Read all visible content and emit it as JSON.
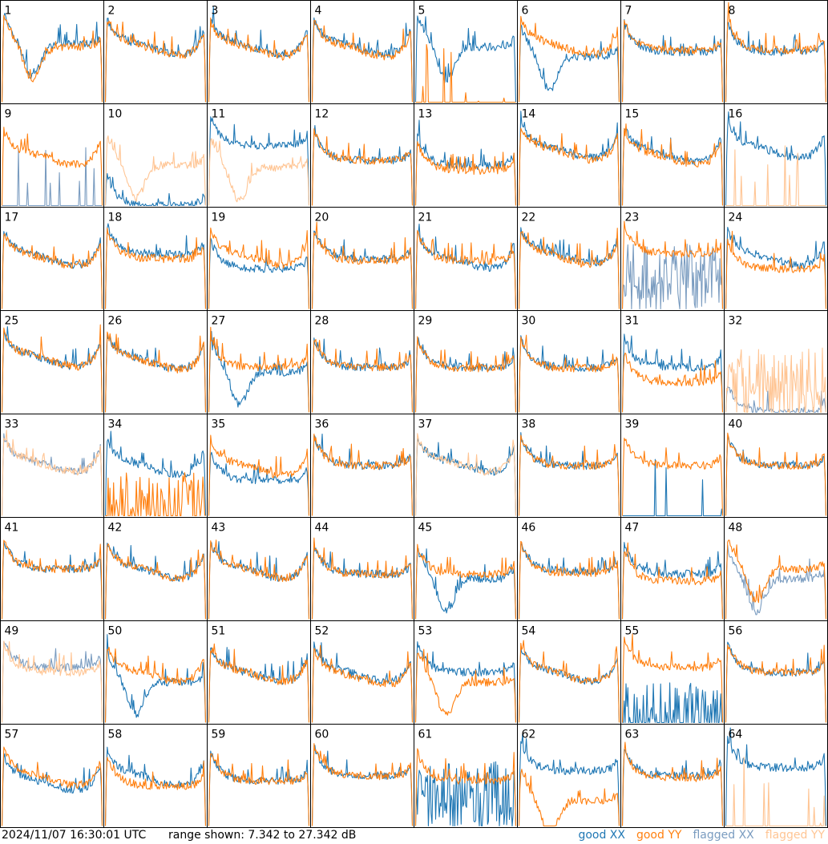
{
  "colors": {
    "good_xx": "#1f77b4",
    "good_yy": "#ff7f0e",
    "flagged_xx": "#7a9cc0",
    "flagged_yy": "#ffc594",
    "panel_border": "#000000",
    "background": "#ffffff"
  },
  "footer": {
    "timestamp": "2024/11/07 16:30:01 UTC",
    "range_text": "range shown: 7.342 to 27.342 dB"
  },
  "legend": [
    {
      "label": "good XX",
      "word": "good",
      "pol": "XX",
      "color": "#1f77b4"
    },
    {
      "label": "good YY",
      "word": "good",
      "pol": "YY",
      "color": "#ff7f0e"
    },
    {
      "label": "flagged XX",
      "word": "flagged",
      "pol": "XX",
      "color": "#7a9cc0"
    },
    {
      "label": "flagged YY",
      "word": "flagged",
      "pol": "YY",
      "color": "#ffc594"
    }
  ],
  "chart_data": {
    "type": "line",
    "layout": "small-multiples grid",
    "rows": 8,
    "cols": 8,
    "y_range_db": [
      7.342,
      27.342
    ],
    "axis_labels": "none",
    "tiles": [
      {
        "id": "1",
        "xx": {
          "status": "good",
          "level": 0.58,
          "shape": "deep_dip"
        },
        "yy": {
          "status": "good",
          "level": 0.55,
          "shape": "deep_dip"
        }
      },
      {
        "id": "2",
        "xx": {
          "status": "good",
          "level": 0.62,
          "shape": "bathtub"
        },
        "yy": {
          "status": "good",
          "level": 0.61,
          "shape": "bathtub"
        }
      },
      {
        "id": "3",
        "xx": {
          "status": "good",
          "level": 0.62,
          "shape": "bathtub"
        },
        "yy": {
          "status": "good",
          "level": 0.6,
          "shape": "bathtub"
        }
      },
      {
        "id": "4",
        "xx": {
          "status": "good",
          "level": 0.62,
          "shape": "bathtub"
        },
        "yy": {
          "status": "good",
          "level": 0.6,
          "shape": "bathtub"
        }
      },
      {
        "id": "5",
        "xx": {
          "status": "good",
          "level": 0.55,
          "shape": "deep_dip"
        },
        "yy": {
          "status": "good",
          "level": 0.0,
          "shape": "spikes_low"
        }
      },
      {
        "id": "6",
        "xx": {
          "status": "good",
          "level": 0.45,
          "shape": "deep_dip"
        },
        "yy": {
          "status": "good",
          "level": 0.62,
          "shape": "bathtub"
        }
      },
      {
        "id": "7",
        "xx": {
          "status": "good",
          "level": 0.5,
          "shape": "flat"
        },
        "yy": {
          "status": "good",
          "level": 0.52,
          "shape": "flat"
        }
      },
      {
        "id": "8",
        "xx": {
          "status": "good",
          "level": 0.5,
          "shape": "flat"
        },
        "yy": {
          "status": "good",
          "level": 0.52,
          "shape": "flat"
        }
      },
      {
        "id": "9",
        "xx": {
          "status": "flagged",
          "level": 0.0,
          "shape": "spikes_low"
        },
        "yy": {
          "status": "good",
          "level": 0.55,
          "shape": "bathtub"
        }
      },
      {
        "id": "10",
        "xx": {
          "status": "good",
          "level": 0.0,
          "shape": "flat"
        },
        "yy": {
          "status": "flagged",
          "level": 0.4,
          "shape": "deep_dip"
        }
      },
      {
        "id": "11",
        "xx": {
          "status": "good",
          "level": 0.6,
          "shape": "flat"
        },
        "yy": {
          "status": "flagged",
          "level": 0.38,
          "shape": "deep_dip"
        }
      },
      {
        "id": "12",
        "xx": {
          "status": "good",
          "level": 0.45,
          "shape": "flat"
        },
        "yy": {
          "status": "good",
          "level": 0.45,
          "shape": "flat"
        }
      },
      {
        "id": "13",
        "xx": {
          "status": "good",
          "level": 0.4,
          "shape": "flat"
        },
        "yy": {
          "status": "good",
          "level": 0.35,
          "shape": "flat"
        }
      },
      {
        "id": "14",
        "xx": {
          "status": "good",
          "level": 0.62,
          "shape": "bathtub"
        },
        "yy": {
          "status": "good",
          "level": 0.6,
          "shape": "bathtub"
        }
      },
      {
        "id": "15",
        "xx": {
          "status": "good",
          "level": 0.58,
          "shape": "bathtub"
        },
        "yy": {
          "status": "good",
          "level": 0.55,
          "shape": "bathtub"
        }
      },
      {
        "id": "16",
        "xx": {
          "status": "good",
          "level": 0.62,
          "shape": "bathtub"
        },
        "yy": {
          "status": "flagged",
          "level": 0.0,
          "shape": "spikes_low"
        }
      },
      {
        "id": "17",
        "xx": {
          "status": "good",
          "level": 0.58,
          "shape": "bathtub"
        },
        "yy": {
          "status": "good",
          "level": 0.57,
          "shape": "bathtub"
        }
      },
      {
        "id": "18",
        "xx": {
          "status": "good",
          "level": 0.55,
          "shape": "flat"
        },
        "yy": {
          "status": "good",
          "level": 0.5,
          "shape": "flat"
        }
      },
      {
        "id": "19",
        "xx": {
          "status": "good",
          "level": 0.4,
          "shape": "flat"
        },
        "yy": {
          "status": "good",
          "level": 0.58,
          "shape": "bathtub"
        }
      },
      {
        "id": "20",
        "xx": {
          "status": "good",
          "level": 0.5,
          "shape": "flat"
        },
        "yy": {
          "status": "good",
          "level": 0.48,
          "shape": "flat"
        }
      },
      {
        "id": "21",
        "xx": {
          "status": "good",
          "level": 0.55,
          "shape": "bathtub"
        },
        "yy": {
          "status": "good",
          "level": 0.48,
          "shape": "flat"
        }
      },
      {
        "id": "22",
        "xx": {
          "status": "good",
          "level": 0.6,
          "shape": "bathtub"
        },
        "yy": {
          "status": "good",
          "level": 0.58,
          "shape": "bathtub"
        }
      },
      {
        "id": "23",
        "xx": {
          "status": "flagged",
          "level": 0.3,
          "shape": "noisy"
        },
        "yy": {
          "status": "good",
          "level": 0.55,
          "shape": "flat"
        }
      },
      {
        "id": "24",
        "xx": {
          "status": "good",
          "level": 0.58,
          "shape": "bathtub"
        },
        "yy": {
          "status": "good",
          "level": 0.4,
          "shape": "flat"
        }
      },
      {
        "id": "25",
        "xx": {
          "status": "good",
          "level": 0.6,
          "shape": "bathtub"
        },
        "yy": {
          "status": "good",
          "level": 0.6,
          "shape": "bathtub"
        }
      },
      {
        "id": "26",
        "xx": {
          "status": "good",
          "level": 0.58,
          "shape": "bathtub"
        },
        "yy": {
          "status": "good",
          "level": 0.57,
          "shape": "bathtub"
        }
      },
      {
        "id": "27",
        "xx": {
          "status": "good",
          "level": 0.4,
          "shape": "deep_dip"
        },
        "yy": {
          "status": "good",
          "level": 0.45,
          "shape": "flat"
        }
      },
      {
        "id": "28",
        "xx": {
          "status": "good",
          "level": 0.45,
          "shape": "flat"
        },
        "yy": {
          "status": "good",
          "level": 0.45,
          "shape": "flat"
        }
      },
      {
        "id": "29",
        "xx": {
          "status": "good",
          "level": 0.45,
          "shape": "flat"
        },
        "yy": {
          "status": "good",
          "level": 0.44,
          "shape": "flat"
        }
      },
      {
        "id": "30",
        "xx": {
          "status": "good",
          "level": 0.45,
          "shape": "flat"
        },
        "yy": {
          "status": "good",
          "level": 0.44,
          "shape": "flat"
        }
      },
      {
        "id": "31",
        "xx": {
          "status": "good",
          "level": 0.45,
          "shape": "flat"
        },
        "yy": {
          "status": "good",
          "level": 0.3,
          "shape": "flat"
        }
      },
      {
        "id": "32",
        "xx": {
          "status": "flagged",
          "level": 0.0,
          "shape": "flat"
        },
        "yy": {
          "status": "flagged",
          "level": 0.3,
          "shape": "noisy"
        }
      },
      {
        "id": "33",
        "xx": {
          "status": "flagged",
          "level": 0.58,
          "shape": "bathtub"
        },
        "yy": {
          "status": "flagged",
          "level": 0.58,
          "shape": "bathtub"
        }
      },
      {
        "id": "34",
        "xx": {
          "status": "good",
          "level": 0.55,
          "shape": "bathtub"
        },
        "yy": {
          "status": "good",
          "level": 0.1,
          "shape": "noisy"
        }
      },
      {
        "id": "35",
        "xx": {
          "status": "good",
          "level": 0.35,
          "shape": "flat"
        },
        "yy": {
          "status": "good",
          "level": 0.55,
          "shape": "bathtub"
        }
      },
      {
        "id": "36",
        "xx": {
          "status": "good",
          "level": 0.5,
          "shape": "flat"
        },
        "yy": {
          "status": "good",
          "level": 0.5,
          "shape": "flat"
        }
      },
      {
        "id": "37",
        "xx": {
          "status": "good",
          "level": 0.58,
          "shape": "bathtub"
        },
        "yy": {
          "status": "flagged",
          "level": 0.58,
          "shape": "bathtub"
        }
      },
      {
        "id": "38",
        "xx": {
          "status": "good",
          "level": 0.5,
          "shape": "flat"
        },
        "yy": {
          "status": "good",
          "level": 0.5,
          "shape": "flat"
        }
      },
      {
        "id": "39",
        "xx": {
          "status": "good",
          "level": 0.0,
          "shape": "spikes_low"
        },
        "yy": {
          "status": "good",
          "level": 0.5,
          "shape": "flat"
        }
      },
      {
        "id": "40",
        "xx": {
          "status": "good",
          "level": 0.5,
          "shape": "flat"
        },
        "yy": {
          "status": "good",
          "level": 0.5,
          "shape": "flat"
        }
      },
      {
        "id": "41",
        "xx": {
          "status": "good",
          "level": 0.5,
          "shape": "flat"
        },
        "yy": {
          "status": "good",
          "level": 0.5,
          "shape": "flat"
        }
      },
      {
        "id": "42",
        "xx": {
          "status": "good",
          "level": 0.55,
          "shape": "bathtub"
        },
        "yy": {
          "status": "good",
          "level": 0.55,
          "shape": "bathtub"
        }
      },
      {
        "id": "43",
        "xx": {
          "status": "good",
          "level": 0.55,
          "shape": "bathtub"
        },
        "yy": {
          "status": "good",
          "level": 0.55,
          "shape": "bathtub"
        }
      },
      {
        "id": "44",
        "xx": {
          "status": "good",
          "level": 0.45,
          "shape": "flat"
        },
        "yy": {
          "status": "good",
          "level": 0.45,
          "shape": "flat"
        }
      },
      {
        "id": "45",
        "xx": {
          "status": "good",
          "level": 0.4,
          "shape": "deep_dip"
        },
        "yy": {
          "status": "good",
          "level": 0.45,
          "shape": "flat"
        }
      },
      {
        "id": "46",
        "xx": {
          "status": "good",
          "level": 0.48,
          "shape": "flat"
        },
        "yy": {
          "status": "good",
          "level": 0.46,
          "shape": "flat"
        }
      },
      {
        "id": "47",
        "xx": {
          "status": "good",
          "level": 0.45,
          "shape": "flat"
        },
        "yy": {
          "status": "good",
          "level": 0.38,
          "shape": "flat"
        }
      },
      {
        "id": "48",
        "xx": {
          "status": "flagged",
          "level": 0.4,
          "shape": "deep_dip"
        },
        "yy": {
          "status": "good",
          "level": 0.5,
          "shape": "deep_dip"
        }
      },
      {
        "id": "49",
        "xx": {
          "status": "flagged",
          "level": 0.55,
          "shape": "flat"
        },
        "yy": {
          "status": "flagged",
          "level": 0.5,
          "shape": "flat"
        }
      },
      {
        "id": "50",
        "xx": {
          "status": "good",
          "level": 0.4,
          "shape": "deep_dip"
        },
        "yy": {
          "status": "good",
          "level": 0.55,
          "shape": "bathtub"
        }
      },
      {
        "id": "51",
        "xx": {
          "status": "good",
          "level": 0.55,
          "shape": "bathtub"
        },
        "yy": {
          "status": "good",
          "level": 0.55,
          "shape": "bathtub"
        }
      },
      {
        "id": "52",
        "xx": {
          "status": "good",
          "level": 0.55,
          "shape": "bathtub"
        },
        "yy": {
          "status": "good",
          "level": 0.52,
          "shape": "bathtub"
        }
      },
      {
        "id": "53",
        "xx": {
          "status": "good",
          "level": 0.5,
          "shape": "flat"
        },
        "yy": {
          "status": "good",
          "level": 0.4,
          "shape": "deep_dip"
        }
      },
      {
        "id": "54",
        "xx": {
          "status": "good",
          "level": 0.55,
          "shape": "bathtub"
        },
        "yy": {
          "status": "good",
          "level": 0.55,
          "shape": "bathtub"
        }
      },
      {
        "id": "55",
        "xx": {
          "status": "good",
          "level": 0.05,
          "shape": "noisy"
        },
        "yy": {
          "status": "good",
          "level": 0.55,
          "shape": "flat"
        }
      },
      {
        "id": "56",
        "xx": {
          "status": "good",
          "level": 0.5,
          "shape": "flat"
        },
        "yy": {
          "status": "good",
          "level": 0.5,
          "shape": "flat"
        }
      },
      {
        "id": "57",
        "xx": {
          "status": "good",
          "level": 0.5,
          "shape": "bathtub"
        },
        "yy": {
          "status": "good",
          "level": 0.55,
          "shape": "bathtub"
        }
      },
      {
        "id": "58",
        "xx": {
          "status": "good",
          "level": 0.55,
          "shape": "bathtub"
        },
        "yy": {
          "status": "good",
          "level": 0.4,
          "shape": "flat"
        }
      },
      {
        "id": "59",
        "xx": {
          "status": "good",
          "level": 0.45,
          "shape": "flat"
        },
        "yy": {
          "status": "good",
          "level": 0.45,
          "shape": "flat"
        }
      },
      {
        "id": "60",
        "xx": {
          "status": "good",
          "level": 0.5,
          "shape": "flat"
        },
        "yy": {
          "status": "good",
          "level": 0.5,
          "shape": "flat"
        }
      },
      {
        "id": "61",
        "xx": {
          "status": "good",
          "level": 0.3,
          "shape": "noisy"
        },
        "yy": {
          "status": "good",
          "level": 0.45,
          "shape": "flat"
        }
      },
      {
        "id": "62",
        "xx": {
          "status": "good",
          "level": 0.55,
          "shape": "flat"
        },
        "yy": {
          "status": "good",
          "level": 0.25,
          "shape": "deep_dip"
        }
      },
      {
        "id": "63",
        "xx": {
          "status": "good",
          "level": 0.5,
          "shape": "flat"
        },
        "yy": {
          "status": "good",
          "level": 0.48,
          "shape": "flat"
        }
      },
      {
        "id": "64",
        "xx": {
          "status": "good",
          "level": 0.58,
          "shape": "flat"
        },
        "yy": {
          "status": "flagged",
          "level": 0.0,
          "shape": "spikes_low"
        }
      }
    ]
  }
}
